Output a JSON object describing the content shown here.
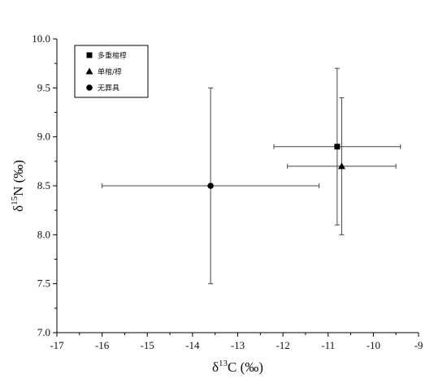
{
  "chart_data": {
    "type": "scatter",
    "xlabel": {
      "base": "δ",
      "sup": "13",
      "rest": "C (‰)"
    },
    "ylabel": {
      "base": "δ",
      "sup": "15",
      "rest": "N (‰)"
    },
    "xlim": [
      -17,
      -9
    ],
    "ylim": [
      7.0,
      10.0
    ],
    "x_ticks": [
      -17,
      -16,
      -15,
      -14,
      -13,
      -12,
      -11,
      -10,
      -9
    ],
    "y_ticks": [
      7.0,
      7.5,
      8.0,
      8.5,
      9.0,
      9.5,
      10.0
    ],
    "legend_position": "top-left",
    "grid": false,
    "series": [
      {
        "name": "多重棺椁",
        "marker": "square",
        "x": -10.8,
        "y": 8.9,
        "x_err": 1.4,
        "y_err": 0.8
      },
      {
        "name": "单棺/椁",
        "marker": "triangle",
        "x": -10.7,
        "y": 8.7,
        "x_err": 1.2,
        "y_err": 0.7
      },
      {
        "name": "无葬具",
        "marker": "circle",
        "x": -13.6,
        "y": 8.5,
        "x_err": 2.4,
        "y_err": 1.0
      }
    ]
  }
}
